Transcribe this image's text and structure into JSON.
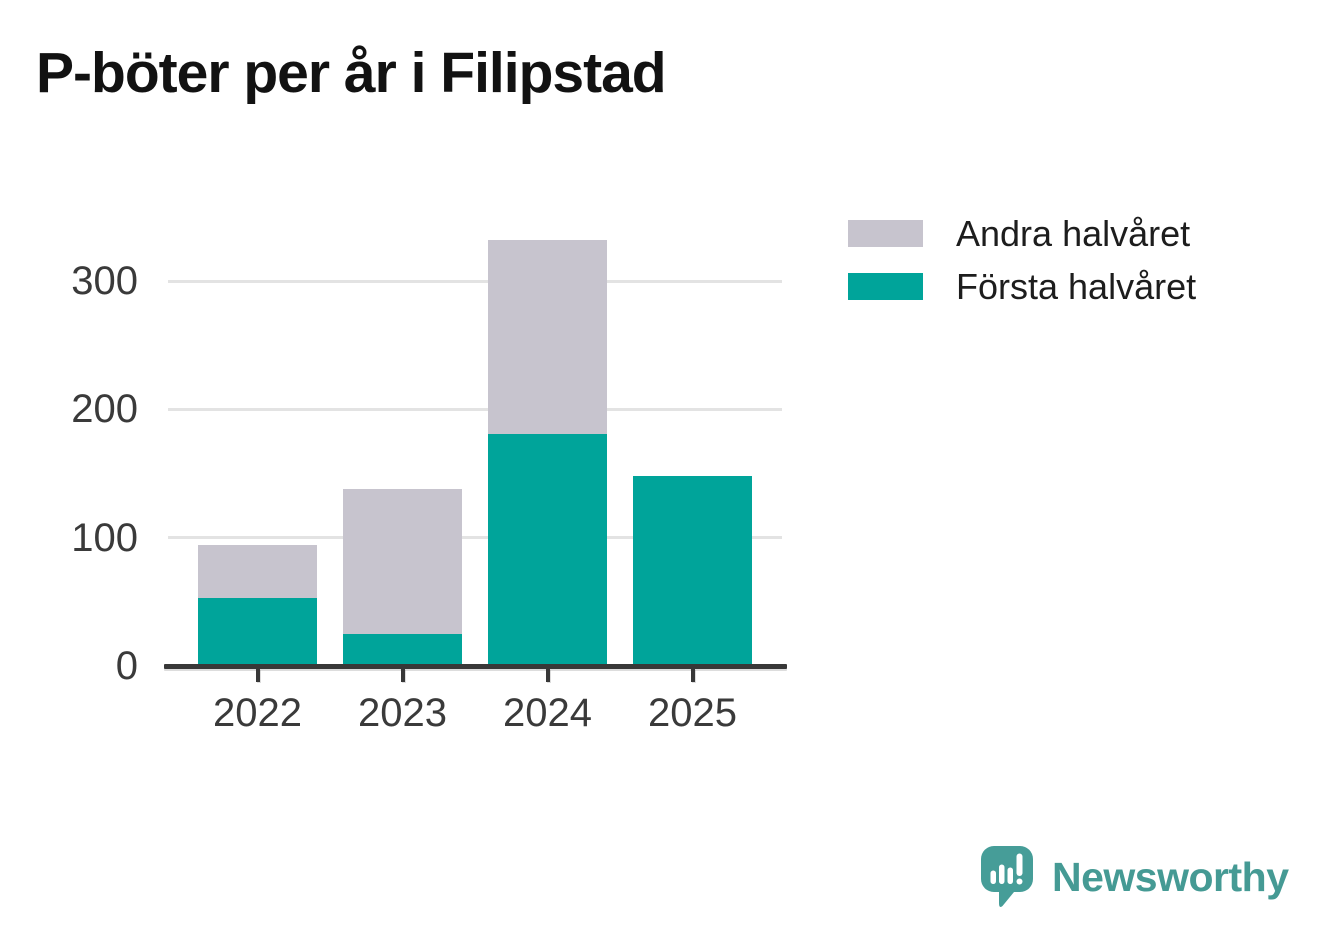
{
  "title": "P-böter per år i Filipstad",
  "chart_data": {
    "type": "bar",
    "stacked": true,
    "title": "P-böter per år i Filipstad",
    "categories": [
      "2022",
      "2023",
      "2024",
      "2025"
    ],
    "series": [
      {
        "name": "Första halvåret",
        "color": "#00a49a",
        "values": [
          53,
          25,
          181,
          148
        ]
      },
      {
        "name": "Andra halvåret",
        "color": "#c7c4ce",
        "values": [
          41,
          113,
          151,
          0
        ]
      }
    ],
    "xlabel": "",
    "ylabel": "",
    "yticks": [
      0,
      100,
      200,
      300
    ],
    "ylim": [
      0,
      344
    ],
    "grid": true,
    "legend_position": "top-right"
  },
  "legend": {
    "items": [
      {
        "label": "Andra halvåret",
        "color": "#c7c4ce"
      },
      {
        "label": "Första halvåret",
        "color": "#00a49a"
      }
    ]
  },
  "branding": {
    "logo_text": "Newsworthy",
    "text_color": "#459a94",
    "icon_color": "#469d98"
  },
  "axis": {
    "grid_color": "#e3e3e3",
    "axis_color": "#383838",
    "label_color": "#3a3a3a",
    "title_color": "#121212"
  }
}
